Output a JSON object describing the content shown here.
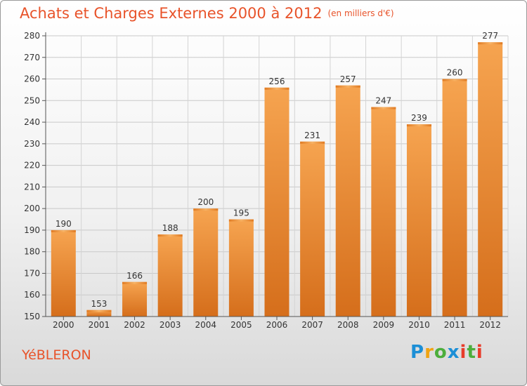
{
  "title": "Achats et Charges Externes 2000 à 2012",
  "unit": "(en milliers d'€)",
  "place": "YéBLERON",
  "logo": [
    "P",
    "r",
    "o",
    "x",
    "i",
    "t",
    "i"
  ],
  "colors": {
    "accent": "#e8532a",
    "bar_light": "#f5a04b",
    "bar_dark": "#d7711d",
    "axis": "#555555",
    "grid": "#c8c8c8"
  },
  "chart_data": {
    "type": "bar",
    "categories": [
      "2000",
      "2001",
      "2002",
      "2003",
      "2004",
      "2005",
      "2006",
      "2007",
      "2008",
      "2009",
      "2010",
      "2011",
      "2012"
    ],
    "values": [
      190,
      153,
      166,
      188,
      200,
      195,
      256,
      231,
      257,
      247,
      239,
      260,
      277
    ],
    "ylim": [
      150,
      280
    ],
    "yticks": [
      150,
      160,
      170,
      180,
      190,
      200,
      210,
      220,
      230,
      240,
      250,
      260,
      270,
      280
    ],
    "grid": true,
    "title": "Achats et Charges Externes 2000 à 2012",
    "xlabel": "",
    "ylabel": ""
  }
}
